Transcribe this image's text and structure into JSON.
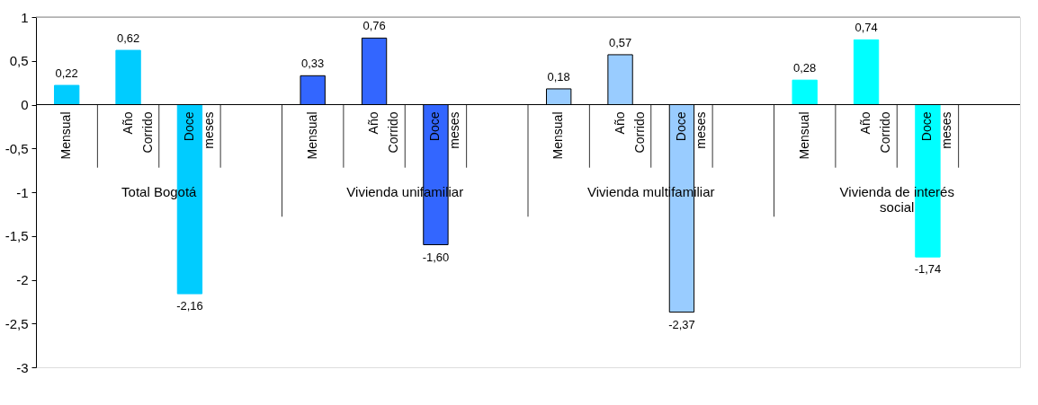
{
  "chart_data": {
    "type": "bar",
    "categories": [
      "Mensual",
      "Año Corrido",
      "Doce meses",
      "Mensual",
      "Año Corrido",
      "Doce meses",
      "Mensual",
      "Año Corrido",
      "Doce meses",
      "Mensual",
      "Año Corrido",
      "Doce meses"
    ],
    "values": [
      0.22,
      0.62,
      -2.16,
      0.33,
      0.76,
      -1.6,
      0.18,
      0.57,
      -2.37,
      0.28,
      0.74,
      -1.74
    ],
    "value_labels": [
      "0,22",
      "0,62",
      "-2,16",
      "0,33",
      "0,76",
      "-1,60",
      "0,18",
      "0,57",
      "-2,37",
      "0,28",
      "0,74",
      "-1,74"
    ],
    "colors": [
      "#00ccff",
      "#00ccff",
      "#00ccff",
      "#3366ff",
      "#3366ff",
      "#3366ff",
      "#99ccff",
      "#99ccff",
      "#99ccff",
      "#00ffff",
      "#00ffff",
      "#00ffff"
    ],
    "annotations": [
      "Total Bogotá",
      "Vivienda unifamiliar",
      "Vivienda multifamiliar",
      "Vivienda de interés social"
    ],
    "ylim": [
      -3,
      1
    ],
    "yticks": [
      {
        "value": -3,
        "label": "-3"
      },
      {
        "value": -2.5,
        "label": "-2,5"
      },
      {
        "value": -2,
        "label": "-2"
      },
      {
        "value": -1.5,
        "label": "-1,5"
      },
      {
        "value": -1,
        "label": "-1"
      },
      {
        "value": -0.5,
        "label": "-0,5"
      },
      {
        "value": 0,
        "label": "0"
      },
      {
        "value": 0.5,
        "label": "0,5"
      },
      {
        "value": 1,
        "label": "1"
      }
    ],
    "grid": false
  }
}
